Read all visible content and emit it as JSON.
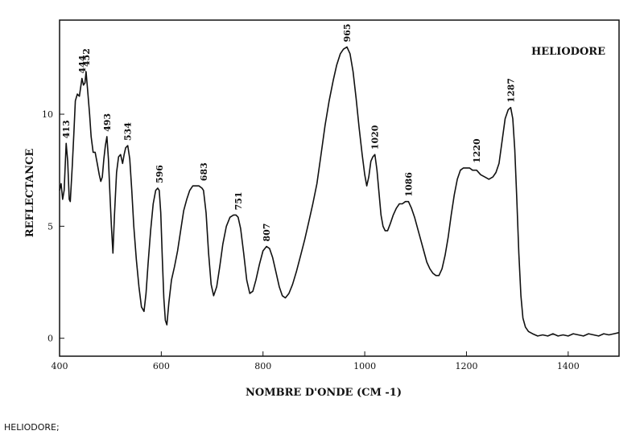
{
  "caption": "HELIODORE;",
  "chart_data": {
    "type": "line",
    "title": "HELIODORE",
    "xlabel": "NOMBRE D'ONDE (CM -1)",
    "ylabel": "REFLECTANCE",
    "xlim": [
      400,
      1500
    ],
    "ylim": [
      -0.8,
      14.2
    ],
    "xticks": [
      400,
      600,
      800,
      1000,
      1200,
      1400
    ],
    "yticks": [
      0,
      5,
      10
    ],
    "grid": false,
    "series": [
      {
        "color": "#111111",
        "points": [
          [
            400,
            6.6
          ],
          [
            403,
            6.9
          ],
          [
            406,
            6.2
          ],
          [
            409,
            6.6
          ],
          [
            411,
            7.7
          ],
          [
            413,
            8.7
          ],
          [
            416,
            7.9
          ],
          [
            419,
            6.2
          ],
          [
            421,
            6.1
          ],
          [
            425,
            7.7
          ],
          [
            428,
            9.1
          ],
          [
            431,
            10.6
          ],
          [
            435,
            10.9
          ],
          [
            439,
            10.8
          ],
          [
            444,
            11.6
          ],
          [
            447,
            11.3
          ],
          [
            450,
            11.4
          ],
          [
            452,
            11.9
          ],
          [
            455,
            11.1
          ],
          [
            459,
            10.0
          ],
          [
            462,
            9.0
          ],
          [
            466,
            8.3
          ],
          [
            470,
            8.3
          ],
          [
            474,
            7.8
          ],
          [
            478,
            7.3
          ],
          [
            481,
            7.0
          ],
          [
            484,
            7.2
          ],
          [
            487,
            8.0
          ],
          [
            490,
            8.6
          ],
          [
            493,
            9.0
          ],
          [
            496,
            8.0
          ],
          [
            499,
            6.4
          ],
          [
            502,
            5.0
          ],
          [
            505,
            3.8
          ],
          [
            508,
            5.5
          ],
          [
            512,
            7.4
          ],
          [
            516,
            8.1
          ],
          [
            520,
            8.2
          ],
          [
            524,
            7.8
          ],
          [
            527,
            8.2
          ],
          [
            530,
            8.5
          ],
          [
            534,
            8.6
          ],
          [
            538,
            8.0
          ],
          [
            542,
            6.6
          ],
          [
            546,
            5.0
          ],
          [
            551,
            3.5
          ],
          [
            556,
            2.3
          ],
          [
            561,
            1.4
          ],
          [
            566,
            1.2
          ],
          [
            570,
            2.0
          ],
          [
            574,
            3.3
          ],
          [
            579,
            4.8
          ],
          [
            584,
            6.0
          ],
          [
            589,
            6.6
          ],
          [
            593,
            6.7
          ],
          [
            596,
            6.6
          ],
          [
            599,
            5.6
          ],
          [
            602,
            3.6
          ],
          [
            605,
            1.8
          ],
          [
            608,
            0.8
          ],
          [
            611,
            0.6
          ],
          [
            615,
            1.6
          ],
          [
            620,
            2.6
          ],
          [
            626,
            3.2
          ],
          [
            632,
            3.9
          ],
          [
            638,
            4.8
          ],
          [
            644,
            5.7
          ],
          [
            650,
            6.2
          ],
          [
            656,
            6.6
          ],
          [
            662,
            6.8
          ],
          [
            668,
            6.8
          ],
          [
            674,
            6.8
          ],
          [
            680,
            6.7
          ],
          [
            683,
            6.6
          ],
          [
            688,
            5.6
          ],
          [
            693,
            3.8
          ],
          [
            698,
            2.4
          ],
          [
            703,
            1.9
          ],
          [
            709,
            2.3
          ],
          [
            715,
            3.2
          ],
          [
            721,
            4.2
          ],
          [
            728,
            5.0
          ],
          [
            735,
            5.4
          ],
          [
            742,
            5.5
          ],
          [
            747,
            5.5
          ],
          [
            751,
            5.4
          ],
          [
            756,
            4.9
          ],
          [
            762,
            3.8
          ],
          [
            768,
            2.6
          ],
          [
            774,
            2.0
          ],
          [
            780,
            2.1
          ],
          [
            786,
            2.6
          ],
          [
            793,
            3.3
          ],
          [
            800,
            3.9
          ],
          [
            807,
            4.1
          ],
          [
            813,
            4.0
          ],
          [
            819,
            3.6
          ],
          [
            825,
            3.0
          ],
          [
            832,
            2.3
          ],
          [
            838,
            1.9
          ],
          [
            844,
            1.8
          ],
          [
            851,
            2.0
          ],
          [
            858,
            2.4
          ],
          [
            866,
            3.0
          ],
          [
            874,
            3.7
          ],
          [
            882,
            4.4
          ],
          [
            890,
            5.2
          ],
          [
            898,
            6.0
          ],
          [
            906,
            6.9
          ],
          [
            914,
            8.2
          ],
          [
            922,
            9.5
          ],
          [
            930,
            10.6
          ],
          [
            938,
            11.5
          ],
          [
            945,
            12.2
          ],
          [
            952,
            12.7
          ],
          [
            958,
            12.9
          ],
          [
            965,
            13.0
          ],
          [
            971,
            12.7
          ],
          [
            977,
            11.9
          ],
          [
            983,
            10.7
          ],
          [
            989,
            9.4
          ],
          [
            995,
            8.2
          ],
          [
            1000,
            7.3
          ],
          [
            1004,
            6.8
          ],
          [
            1008,
            7.2
          ],
          [
            1012,
            7.9
          ],
          [
            1016,
            8.1
          ],
          [
            1020,
            8.2
          ],
          [
            1024,
            7.5
          ],
          [
            1028,
            6.5
          ],
          [
            1032,
            5.5
          ],
          [
            1036,
            5.0
          ],
          [
            1040,
            4.8
          ],
          [
            1045,
            4.8
          ],
          [
            1050,
            5.1
          ],
          [
            1056,
            5.5
          ],
          [
            1062,
            5.8
          ],
          [
            1068,
            6.0
          ],
          [
            1074,
            6.0
          ],
          [
            1080,
            6.1
          ],
          [
            1086,
            6.1
          ],
          [
            1092,
            5.8
          ],
          [
            1098,
            5.4
          ],
          [
            1104,
            4.9
          ],
          [
            1110,
            4.4
          ],
          [
            1116,
            3.9
          ],
          [
            1122,
            3.4
          ],
          [
            1128,
            3.1
          ],
          [
            1134,
            2.9
          ],
          [
            1140,
            2.8
          ],
          [
            1146,
            2.8
          ],
          [
            1152,
            3.1
          ],
          [
            1158,
            3.7
          ],
          [
            1164,
            4.5
          ],
          [
            1170,
            5.5
          ],
          [
            1176,
            6.4
          ],
          [
            1182,
            7.1
          ],
          [
            1188,
            7.5
          ],
          [
            1194,
            7.6
          ],
          [
            1200,
            7.6
          ],
          [
            1206,
            7.6
          ],
          [
            1212,
            7.5
          ],
          [
            1220,
            7.5
          ],
          [
            1228,
            7.3
          ],
          [
            1236,
            7.2
          ],
          [
            1244,
            7.1
          ],
          [
            1252,
            7.2
          ],
          [
            1258,
            7.4
          ],
          [
            1264,
            7.8
          ],
          [
            1270,
            8.8
          ],
          [
            1276,
            9.8
          ],
          [
            1282,
            10.2
          ],
          [
            1287,
            10.3
          ],
          [
            1291,
            9.8
          ],
          [
            1295,
            8.4
          ],
          [
            1299,
            6.2
          ],
          [
            1303,
            3.8
          ],
          [
            1307,
            1.9
          ],
          [
            1311,
            0.9
          ],
          [
            1316,
            0.5
          ],
          [
            1322,
            0.3
          ],
          [
            1330,
            0.2
          ],
          [
            1340,
            0.1
          ],
          [
            1350,
            0.15
          ],
          [
            1360,
            0.1
          ],
          [
            1370,
            0.2
          ],
          [
            1380,
            0.1
          ],
          [
            1390,
            0.15
          ],
          [
            1400,
            0.1
          ],
          [
            1410,
            0.2
          ],
          [
            1420,
            0.15
          ],
          [
            1430,
            0.1
          ],
          [
            1440,
            0.2
          ],
          [
            1450,
            0.15
          ],
          [
            1460,
            0.1
          ],
          [
            1470,
            0.2
          ],
          [
            1480,
            0.15
          ],
          [
            1490,
            0.2
          ],
          [
            1500,
            0.25
          ]
        ]
      }
    ],
    "annotations": [
      {
        "text": "413",
        "x": 413,
        "y": 8.7
      },
      {
        "text": "444",
        "x": 444,
        "y": 11.6
      },
      {
        "text": "452",
        "x": 452,
        "y": 11.9
      },
      {
        "text": "493",
        "x": 493,
        "y": 9.0
      },
      {
        "text": "534",
        "x": 534,
        "y": 8.6
      },
      {
        "text": "596",
        "x": 596,
        "y": 6.7
      },
      {
        "text": "683",
        "x": 683,
        "y": 6.8
      },
      {
        "text": "751",
        "x": 751,
        "y": 5.5
      },
      {
        "text": "807",
        "x": 807,
        "y": 4.1
      },
      {
        "text": "965",
        "x": 965,
        "y": 13.0
      },
      {
        "text": "1020",
        "x": 1020,
        "y": 8.2
      },
      {
        "text": "1086",
        "x": 1086,
        "y": 6.1
      },
      {
        "text": "1220",
        "x": 1220,
        "y": 7.6
      },
      {
        "text": "1287",
        "x": 1287,
        "y": 10.3
      }
    ]
  }
}
